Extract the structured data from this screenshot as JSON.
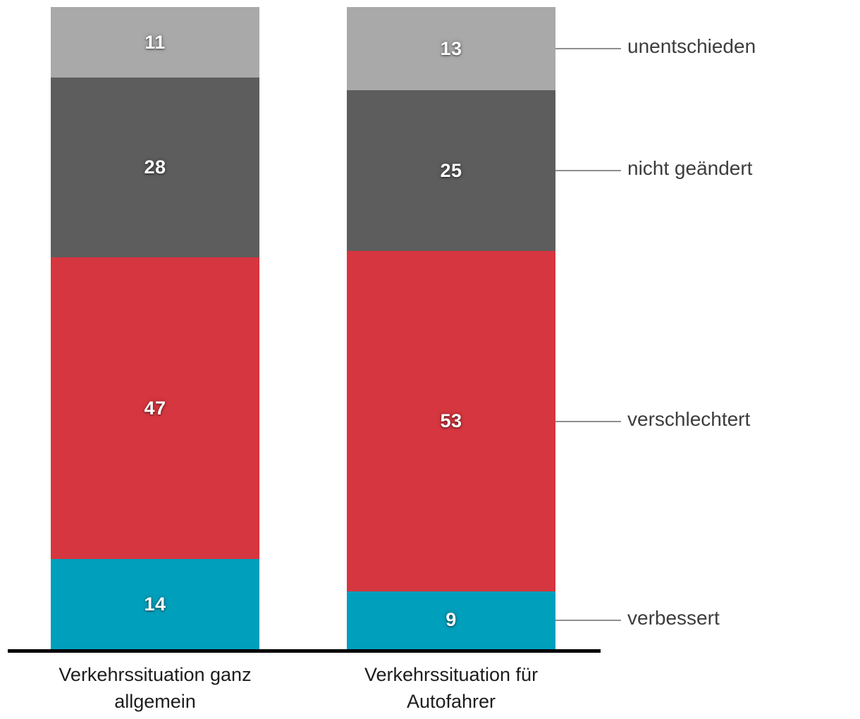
{
  "chart_data": {
    "type": "bar",
    "stacked": true,
    "orientation": "vertical",
    "categories": [
      "Verkehrssituation ganz allgemein",
      "Verkehrssituation für Autofahrer"
    ],
    "series": [
      {
        "name": "verbessert",
        "color": "#009fbc",
        "values": [
          14,
          9
        ]
      },
      {
        "name": "verschlechtert",
        "color": "#d6363f",
        "values": [
          47,
          53
        ]
      },
      {
        "name": "nicht geändert",
        "color": "#5d5d5d",
        "values": [
          28,
          25
        ]
      },
      {
        "name": "unentschieden",
        "color": "#a9a9a9",
        "values": [
          11,
          13
        ]
      }
    ],
    "ylim": [
      0,
      100
    ],
    "title": "",
    "xlabel": "",
    "ylabel": "",
    "grid": false,
    "legend_position": "right",
    "legend_order_top_to_bottom": [
      "unentschieden",
      "nicht geändert",
      "verschlechtert",
      "verbessert"
    ],
    "value_label_color": "#ffffff",
    "axis_line_color": "#000000",
    "leader_line_color": "#8f8f8f",
    "category_label_color": "#1d1d1d",
    "legend_label_color": "#3d3d3d",
    "background_color": "#ffffff"
  }
}
